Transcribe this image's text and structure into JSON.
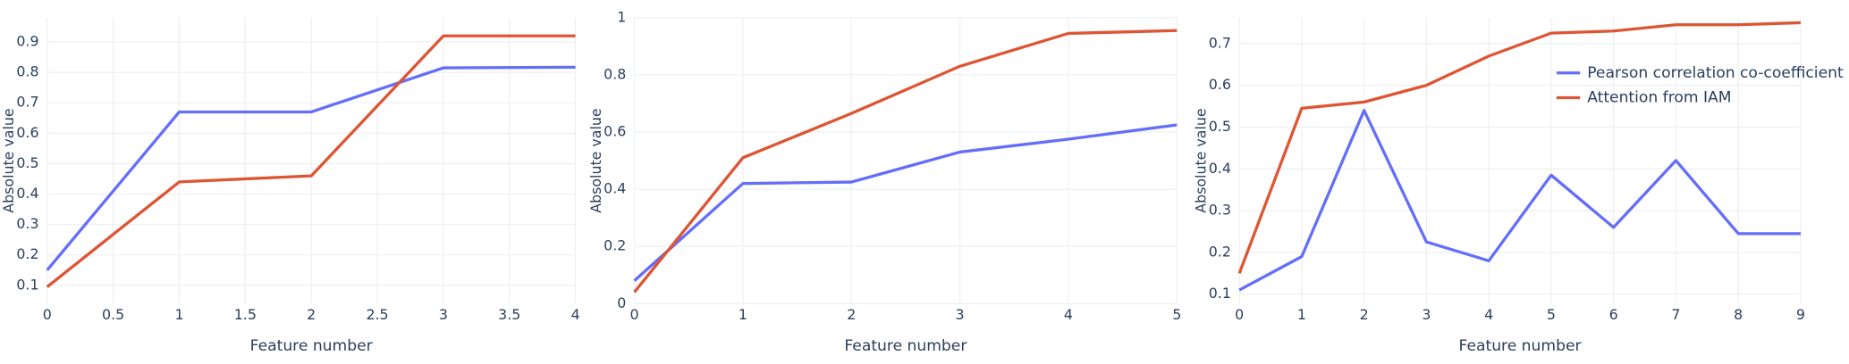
{
  "chart_data": [
    {
      "type": "line",
      "x_label": "Feature number",
      "y_label": "Absolute value",
      "x": [
        0,
        1,
        2,
        3,
        4
      ],
      "xlim": [
        0,
        4
      ],
      "xticks": [
        0,
        0.5,
        1,
        1.5,
        2,
        2.5,
        3,
        3.5,
        4
      ],
      "ylim": [
        0.04,
        0.98
      ],
      "yticks": [
        0.1,
        0.2,
        0.3,
        0.4,
        0.5,
        0.6,
        0.7,
        0.8,
        0.9
      ],
      "grid": true,
      "series": [
        {
          "color": "#636efa",
          "values": [
            0.15,
            0.67,
            0.67,
            0.815,
            0.817
          ]
        },
        {
          "color": "#dd5533",
          "values": [
            0.095,
            0.44,
            0.46,
            0.92,
            0.92
          ]
        }
      ]
    },
    {
      "type": "line",
      "x_label": "Feature number",
      "y_label": "Absolute value",
      "x": [
        0,
        1,
        2,
        3,
        4,
        5
      ],
      "xlim": [
        0,
        5
      ],
      "xticks": [
        0,
        1,
        2,
        3,
        4,
        5
      ],
      "ylim": [
        0,
        1
      ],
      "yticks": [
        0,
        0.2,
        0.4,
        0.6,
        0.8,
        1
      ],
      "grid": true,
      "series": [
        {
          "color": "#636efa",
          "values": [
            0.08,
            0.42,
            0.425,
            0.53,
            0.575,
            0.625
          ]
        },
        {
          "color": "#dd5533",
          "values": [
            0.04,
            0.51,
            0.665,
            0.83,
            0.945,
            0.955
          ]
        }
      ]
    },
    {
      "type": "line",
      "x_label": "Feature number",
      "y_label": "Absolute value",
      "x": [
        0,
        1,
        2,
        3,
        4,
        5,
        6,
        7,
        8,
        9
      ],
      "xlim": [
        0,
        9
      ],
      "xticks": [
        0,
        1,
        2,
        3,
        4,
        5,
        6,
        7,
        8,
        9
      ],
      "ylim": [
        0.0775,
        0.762
      ],
      "yticks": [
        0.1,
        0.2,
        0.3,
        0.4,
        0.5,
        0.6,
        0.7
      ],
      "grid": true,
      "legend": "top-right",
      "series": [
        {
          "name": "Pearson correlation co-coefficient",
          "color": "#636efa",
          "values": [
            0.11,
            0.19,
            0.54,
            0.225,
            0.18,
            0.385,
            0.26,
            0.42,
            0.245,
            0.245
          ]
        },
        {
          "name": "Attention from IAM",
          "color": "#dd5533",
          "values": [
            0.15,
            0.545,
            0.56,
            0.6,
            0.67,
            0.725,
            0.73,
            0.745,
            0.745,
            0.75
          ]
        }
      ]
    }
  ]
}
